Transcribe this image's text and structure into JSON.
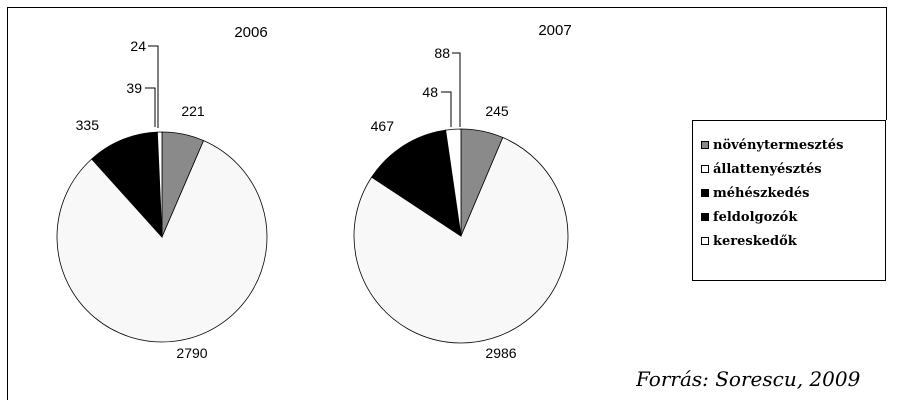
{
  "chart_data": [
    {
      "type": "pie",
      "title": "2006",
      "categories": [
        "növénytermesztés",
        "állattenyésztés",
        "méhészkedés",
        "feldolgozók",
        "kereskedők"
      ],
      "values": [
        221,
        2790,
        335,
        39,
        24
      ],
      "colors": [
        "#8a8a8a",
        "#f8f8f8",
        "#000000",
        "#000000",
        "#ffffff"
      ],
      "labels": [
        "221",
        "2790",
        "335",
        "39",
        "24"
      ]
    },
    {
      "type": "pie",
      "title": "2007",
      "categories": [
        "növénytermesztés",
        "állattenyésztés",
        "méhészkedés",
        "feldolgozók",
        "kereskedők"
      ],
      "values": [
        245,
        2986,
        467,
        48,
        88
      ],
      "colors": [
        "#8a8a8a",
        "#f8f8f8",
        "#000000",
        "#000000",
        "#ffffff"
      ],
      "labels": [
        "245",
        "2986",
        "467",
        "48",
        "88"
      ]
    }
  ],
  "legend": {
    "items": [
      {
        "label": "növénytermesztés",
        "color": "#8a8a8a"
      },
      {
        "label": "állattenyésztés",
        "color": "#ffffff"
      },
      {
        "label": "méhészkedés",
        "color": "#000000"
      },
      {
        "label": "feldolgozók",
        "color": "#000000"
      },
      {
        "label": "kereskedők",
        "color": "#ffffff"
      }
    ]
  },
  "source": "Forrás: Sorescu, 2009"
}
